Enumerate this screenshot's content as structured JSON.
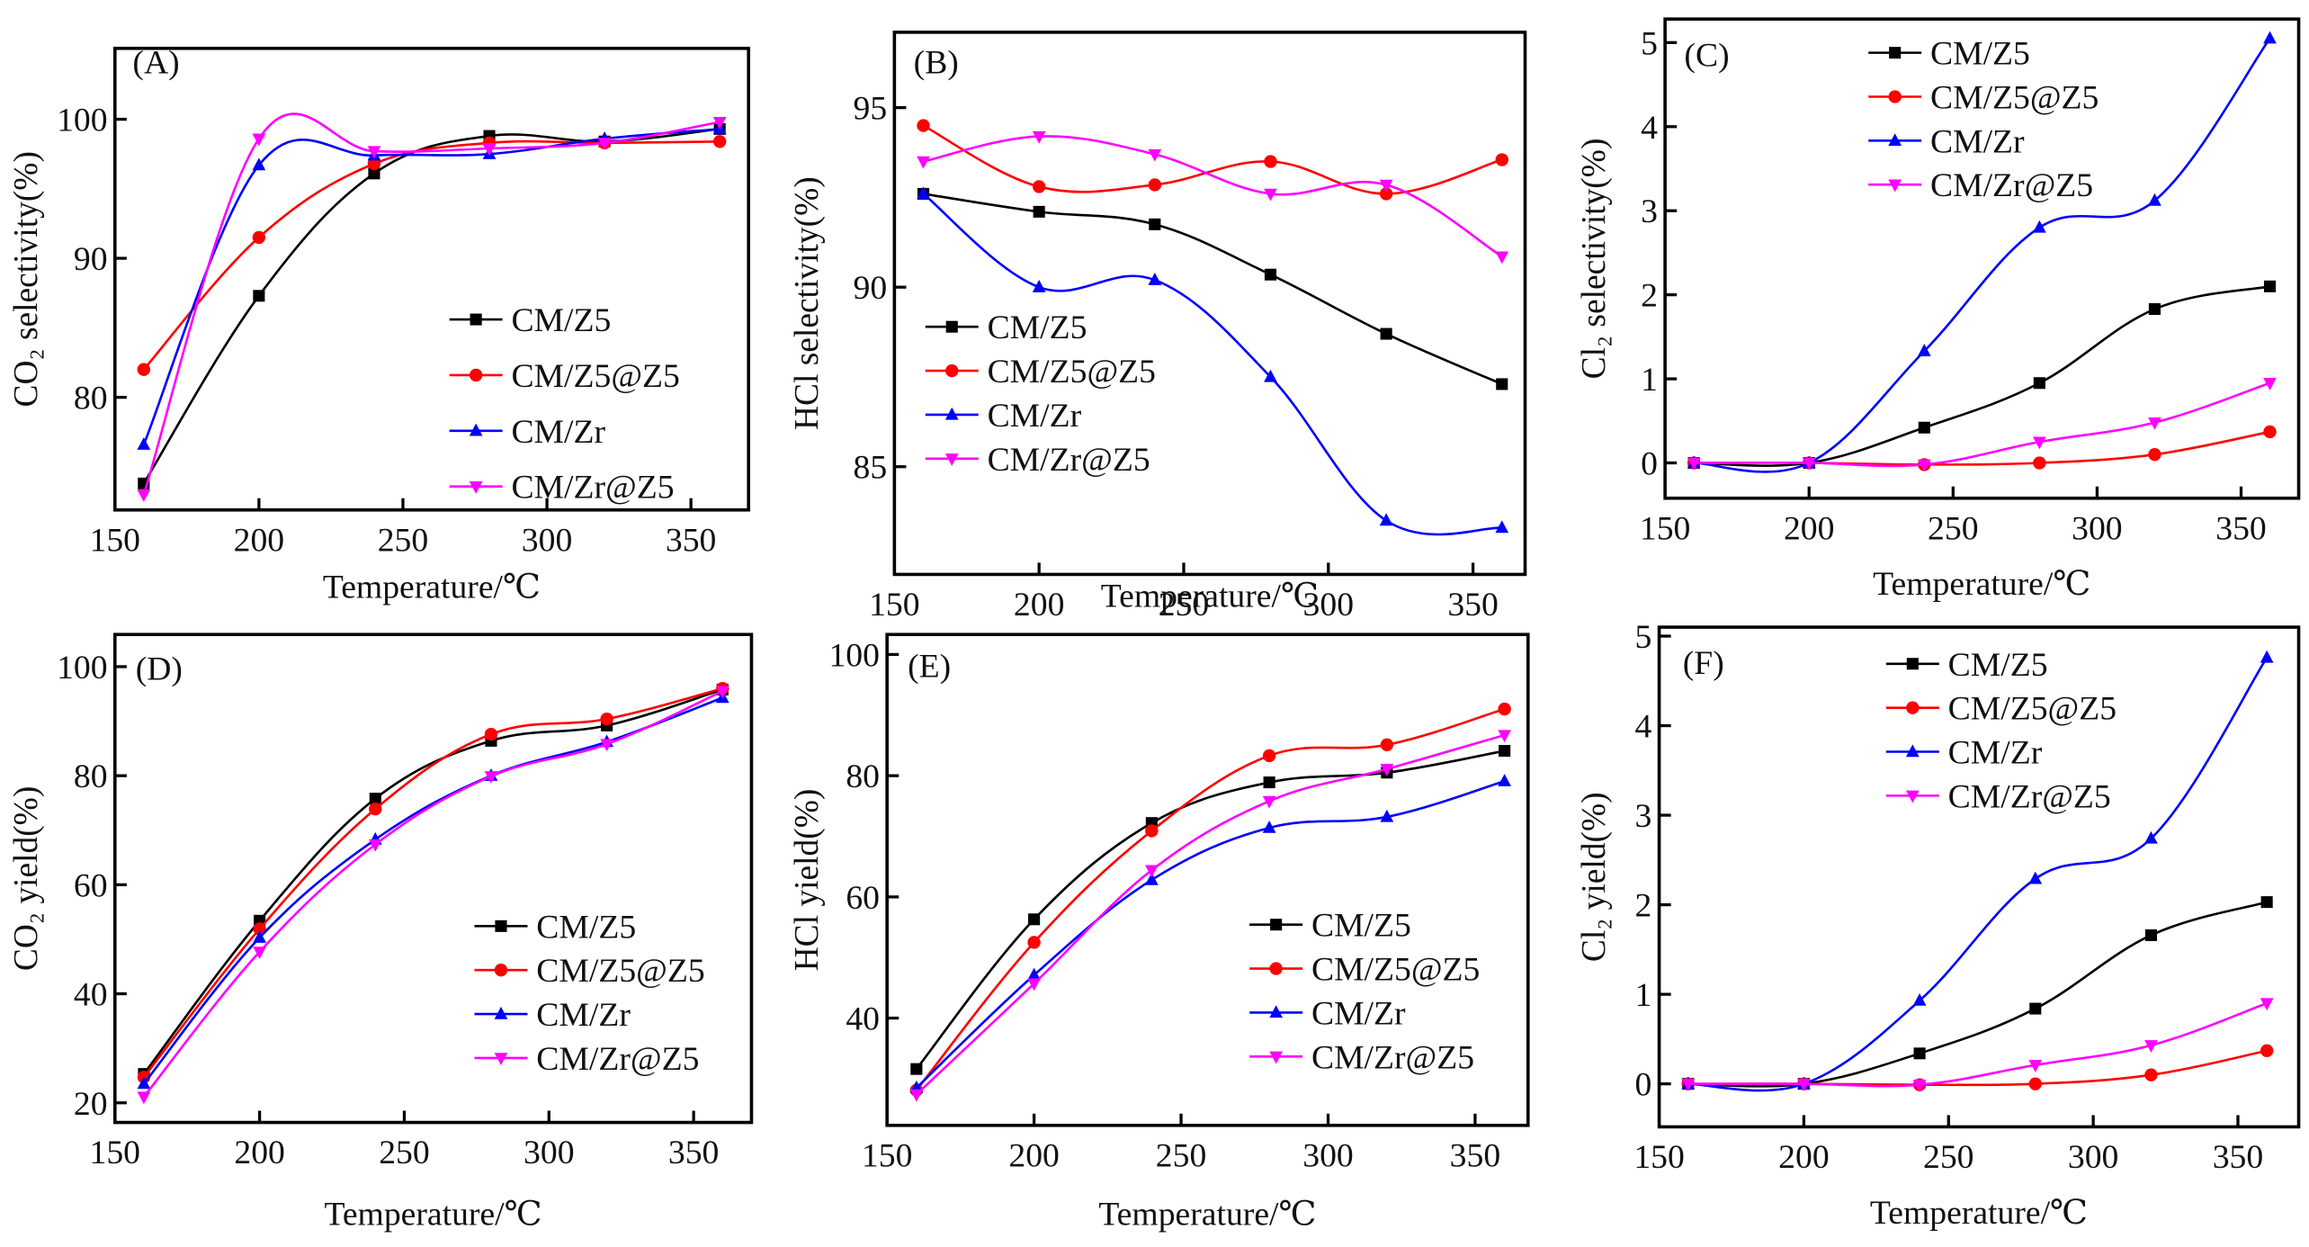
{
  "figure": {
    "series_names": [
      "CM/Z5",
      "CM/Z5@Z5",
      "CM/Zr",
      "CM/Zr@Z5"
    ],
    "series_colors": [
      "#000000",
      "#ff0000",
      "#0000ff",
      "#ff00ff"
    ],
    "series_markers": [
      "square",
      "circle",
      "triangle-up",
      "triangle-down"
    ]
  },
  "chart_data": [
    {
      "id": "A",
      "panel_label": "(A)",
      "type": "line",
      "title": "",
      "xlabel": "Temperature/℃",
      "ylabel": "CO₂ selectivity(%)",
      "x": [
        160,
        200,
        240,
        280,
        320,
        360
      ],
      "xlim": [
        150,
        370
      ],
      "xticks": [
        150,
        200,
        250,
        300,
        350
      ],
      "ylim": [
        71.9,
        105.1
      ],
      "yticks": [
        80,
        90,
        100
      ],
      "legend": "center-right",
      "grid": false,
      "series": [
        {
          "name": "CM/Z5",
          "values": [
            73.8,
            87.3,
            96.1,
            98.8,
            98.4,
            99.3
          ]
        },
        {
          "name": "CM/Z5@Z5",
          "values": [
            82.0,
            91.5,
            96.8,
            98.3,
            98.3,
            98.4
          ]
        },
        {
          "name": "CM/Zr",
          "values": [
            76.6,
            96.7,
            97.4,
            97.5,
            98.6,
            99.3
          ]
        },
        {
          "name": "CM/Zr@Z5",
          "values": [
            73.0,
            98.6,
            97.7,
            97.9,
            98.3,
            99.8
          ]
        }
      ]
    },
    {
      "id": "B",
      "panel_label": "(B)",
      "type": "line",
      "title": "",
      "xlabel": "Temperature/℃",
      "ylabel": "HCl selectivity(%)",
      "x": [
        160,
        200,
        240,
        280,
        320,
        360
      ],
      "xlim": [
        150,
        368
      ],
      "xticks": [
        150,
        200,
        250,
        300,
        350
      ],
      "ylim": [
        82.0,
        97.1
      ],
      "yticks": [
        85,
        90,
        95
      ],
      "legend": "bottom-left",
      "grid": false,
      "series": [
        {
          "name": "CM/Z5",
          "values": [
            92.6,
            92.1,
            91.75,
            90.35,
            88.7,
            87.3
          ]
        },
        {
          "name": "CM/Z5@Z5",
          "values": [
            94.5,
            92.8,
            92.85,
            93.5,
            92.6,
            93.55
          ]
        },
        {
          "name": "CM/Zr",
          "values": [
            92.6,
            90.0,
            90.2,
            87.5,
            83.5,
            83.3
          ]
        },
        {
          "name": "CM/Zr@Z5",
          "values": [
            93.5,
            94.2,
            93.7,
            92.6,
            92.85,
            90.85
          ]
        }
      ]
    },
    {
      "id": "C",
      "panel_label": "(C)",
      "type": "line",
      "title": "",
      "xlabel": "Temperature/℃",
      "ylabel": "Cl₂ selectivity(%)",
      "x": [
        160,
        200,
        240,
        280,
        320,
        360
      ],
      "xlim": [
        150,
        370
      ],
      "xticks": [
        150,
        200,
        250,
        300,
        350
      ],
      "ylim": [
        -0.42,
        5.28
      ],
      "yticks": [
        0,
        1,
        2,
        3,
        4,
        5
      ],
      "legend": "top-center",
      "grid": false,
      "series": [
        {
          "name": "CM/Z5",
          "values": [
            0,
            0,
            0.42,
            0.95,
            1.83,
            2.1
          ]
        },
        {
          "name": "CM/Z5@Z5",
          "values": [
            0,
            0,
            -0.02,
            0,
            0.1,
            0.37
          ]
        },
        {
          "name": "CM/Zr",
          "values": [
            0,
            0,
            1.33,
            2.8,
            3.12,
            5.05
          ]
        },
        {
          "name": "CM/Zr@Z5",
          "values": [
            0,
            0,
            -0.02,
            0.25,
            0.48,
            0.95
          ]
        }
      ]
    },
    {
      "id": "D",
      "panel_label": "(D)",
      "type": "line",
      "title": "",
      "xlabel": "Temperature/℃",
      "ylabel": "CO₂ yield(%)",
      "x": [
        160,
        200,
        240,
        280,
        320,
        360
      ],
      "xlim": [
        150,
        370
      ],
      "xticks": [
        150,
        200,
        250,
        300,
        350
      ],
      "ylim": [
        16.4,
        105.9
      ],
      "yticks": [
        20,
        40,
        60,
        80,
        100
      ],
      "legend": "bottom-right",
      "grid": false,
      "series": [
        {
          "name": "CM/Z5",
          "values": [
            25.3,
            53.4,
            75.8,
            86.4,
            89.2,
            95.8
          ]
        },
        {
          "name": "CM/Z5@Z5",
          "values": [
            24.7,
            51.9,
            73.9,
            87.6,
            90.4,
            96.0
          ]
        },
        {
          "name": "CM/Zr",
          "values": [
            23.5,
            50.3,
            68.3,
            80.0,
            86.2,
            94.3
          ]
        },
        {
          "name": "CM/Zr@Z5",
          "values": [
            21.1,
            47.7,
            67.4,
            79.9,
            85.8,
            95.5
          ]
        }
      ]
    },
    {
      "id": "E",
      "panel_label": "(E)",
      "type": "line",
      "title": "",
      "xlabel": "Temperature/℃",
      "ylabel": "HCl yield(%)",
      "x": [
        160,
        200,
        240,
        280,
        320,
        360
      ],
      "xlim": [
        150,
        368
      ],
      "xticks": [
        150,
        200,
        250,
        300,
        350
      ],
      "ylim": [
        22.3,
        103.3
      ],
      "yticks": [
        40,
        60,
        80,
        100
      ],
      "legend": "bottom-right",
      "grid": false,
      "series": [
        {
          "name": "CM/Z5",
          "values": [
            31.6,
            56.3,
            72.2,
            78.9,
            80.5,
            84.1
          ]
        },
        {
          "name": "CM/Z5@Z5",
          "values": [
            28.1,
            52.5,
            70.9,
            83.3,
            85.1,
            91.0
          ]
        },
        {
          "name": "CM/Zr",
          "values": [
            28.5,
            47.1,
            62.8,
            71.4,
            73.2,
            79.1
          ]
        },
        {
          "name": "CM/Zr@Z5",
          "values": [
            27.4,
            45.7,
            64.4,
            75.8,
            81.1,
            86.7
          ]
        }
      ]
    },
    {
      "id": "F",
      "panel_label": "(F)",
      "type": "line",
      "title": "",
      "xlabel": "Temperature/℃",
      "ylabel": "Cl₂ yield(%)",
      "x": [
        160,
        200,
        240,
        280,
        320,
        360
      ],
      "xlim": [
        150,
        371
      ],
      "xticks": [
        150,
        200,
        250,
        300,
        350
      ],
      "ylim": [
        -0.48,
        5.1
      ],
      "yticks": [
        0,
        1,
        2,
        3,
        4,
        5
      ],
      "legend": "top-center",
      "grid": false,
      "series": [
        {
          "name": "CM/Z5",
          "values": [
            0,
            0,
            0.34,
            0.84,
            1.66,
            2.03
          ]
        },
        {
          "name": "CM/Z5@Z5",
          "values": [
            0,
            0,
            -0.01,
            0,
            0.1,
            0.37
          ]
        },
        {
          "name": "CM/Zr",
          "values": [
            0,
            0,
            0.93,
            2.29,
            2.74,
            4.76
          ]
        },
        {
          "name": "CM/Zr@Z5",
          "values": [
            0,
            0,
            -0.01,
            0.21,
            0.43,
            0.9
          ]
        }
      ]
    }
  ]
}
